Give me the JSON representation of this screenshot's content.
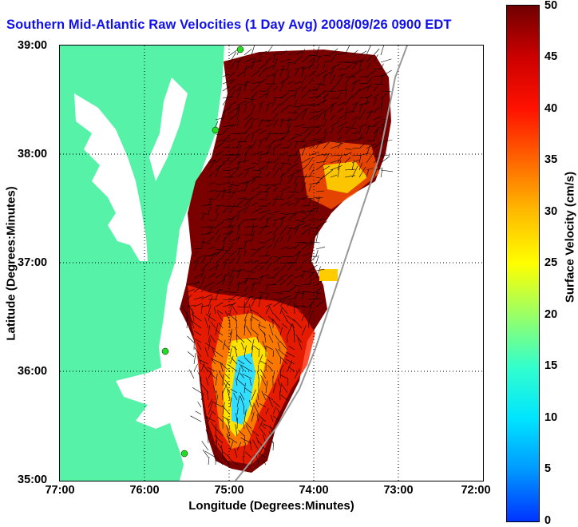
{
  "title": "Southern Mid-Atlantic Raw Velocities (1 Day Avg) 2008/09/26 0900 EDT",
  "axes": {
    "xlabel": "Longitude (Degrees:Minutes)",
    "ylabel": "Latitude (Degrees:Minutes)",
    "xticks": [
      "77:00",
      "76:00",
      "75:00",
      "74:00",
      "73:00",
      "72:00"
    ],
    "yticks": [
      "39:00",
      "38:00",
      "37:00",
      "36:00",
      "35:00"
    ]
  },
  "colorbar": {
    "label": "Surface Velocity (cm/s)",
    "ticks": [
      "50",
      "45",
      "40",
      "35",
      "30",
      "25",
      "20",
      "15",
      "10",
      "5",
      "0"
    ]
  },
  "map": {
    "lon_range": [
      -77,
      -72
    ],
    "lat_range": [
      35,
      39
    ],
    "land_color": "#55f2a8",
    "station_color": "#22dd22"
  }
}
